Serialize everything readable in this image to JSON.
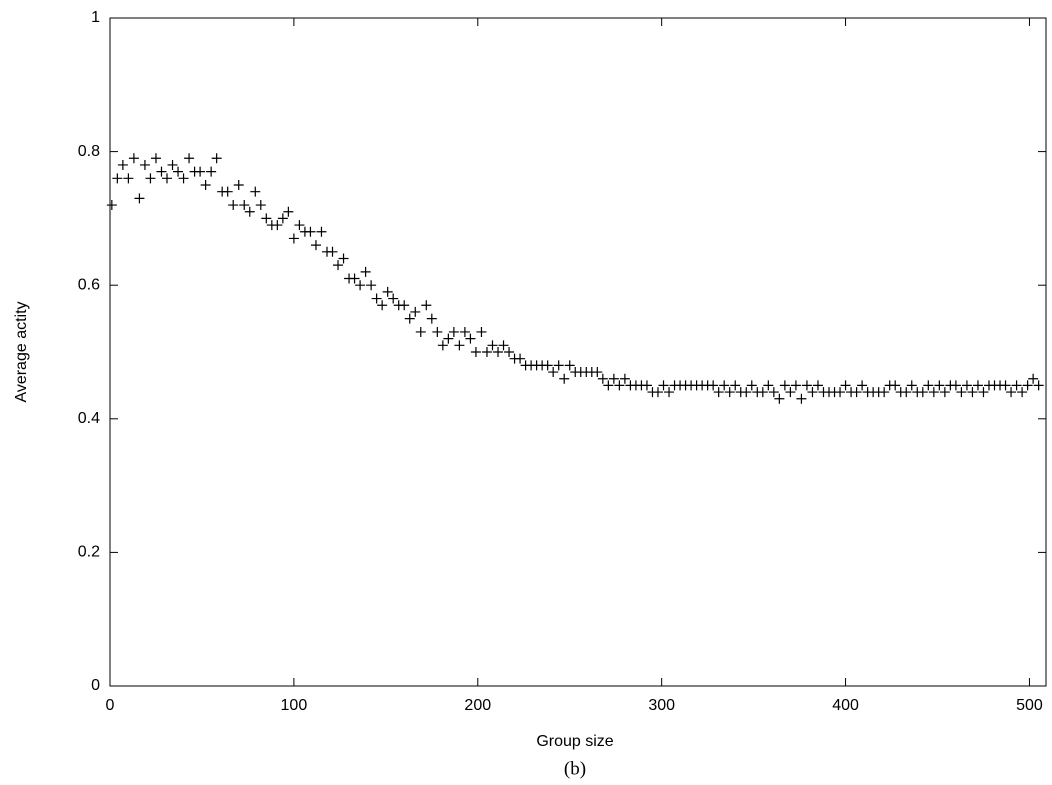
{
  "chart_data": {
    "type": "scatter",
    "xlabel": "Group size",
    "ylabel": "Average actity",
    "caption": "(b)",
    "color": "#000000",
    "xlim": [
      0,
      509
    ],
    "ylim": [
      0,
      1
    ],
    "xticks": [
      0,
      100,
      200,
      300,
      400,
      500
    ],
    "yticks": [
      0,
      0.2,
      0.4,
      0.6,
      0.8,
      1
    ],
    "x": [
      1,
      4,
      7,
      10,
      13,
      16,
      19,
      22,
      25,
      28,
      31,
      34,
      37,
      40,
      43,
      46,
      49,
      52,
      55,
      58,
      61,
      64,
      67,
      70,
      73,
      76,
      79,
      82,
      85,
      88,
      91,
      94,
      97,
      100,
      103,
      106,
      109,
      112,
      115,
      118,
      121,
      124,
      127,
      130,
      133,
      136,
      139,
      142,
      145,
      148,
      151,
      154,
      157,
      160,
      163,
      166,
      169,
      172,
      175,
      178,
      181,
      184,
      187,
      190,
      193,
      196,
      199,
      202,
      205,
      208,
      211,
      214,
      217,
      220,
      223,
      226,
      229,
      232,
      235,
      238,
      241,
      244,
      247,
      250,
      253,
      256,
      259,
      262,
      265,
      268,
      271,
      274,
      277,
      280,
      283,
      286,
      289,
      292,
      295,
      298,
      301,
      304,
      307,
      310,
      313,
      316,
      319,
      322,
      325,
      328,
      331,
      334,
      337,
      340,
      343,
      346,
      349,
      352,
      355,
      358,
      361,
      364,
      367,
      370,
      373,
      376,
      379,
      382,
      385,
      388,
      391,
      394,
      397,
      400,
      403,
      406,
      409,
      412,
      415,
      418,
      421,
      424,
      427,
      430,
      433,
      436,
      439,
      442,
      445,
      448,
      451,
      454,
      457,
      460,
      463,
      466,
      469,
      472,
      475,
      478,
      481,
      484,
      487,
      490,
      493,
      496,
      499,
      502,
      505
    ],
    "values": [
      0.72,
      0.76,
      0.78,
      0.76,
      0.79,
      0.73,
      0.78,
      0.76,
      0.79,
      0.77,
      0.76,
      0.78,
      0.77,
      0.76,
      0.79,
      0.77,
      0.77,
      0.75,
      0.77,
      0.79,
      0.74,
      0.74,
      0.72,
      0.75,
      0.72,
      0.71,
      0.74,
      0.72,
      0.7,
      0.69,
      0.69,
      0.7,
      0.71,
      0.67,
      0.69,
      0.68,
      0.68,
      0.66,
      0.68,
      0.65,
      0.65,
      0.63,
      0.64,
      0.61,
      0.61,
      0.6,
      0.62,
      0.6,
      0.58,
      0.57,
      0.59,
      0.58,
      0.57,
      0.57,
      0.55,
      0.56,
      0.53,
      0.57,
      0.55,
      0.53,
      0.51,
      0.52,
      0.53,
      0.51,
      0.53,
      0.52,
      0.5,
      0.53,
      0.5,
      0.51,
      0.5,
      0.51,
      0.5,
      0.49,
      0.49,
      0.48,
      0.48,
      0.48,
      0.48,
      0.48,
      0.47,
      0.48,
      0.46,
      0.48,
      0.47,
      0.47,
      0.47,
      0.47,
      0.47,
      0.46,
      0.45,
      0.46,
      0.45,
      0.46,
      0.45,
      0.45,
      0.45,
      0.45,
      0.44,
      0.44,
      0.45,
      0.44,
      0.45,
      0.45,
      0.45,
      0.45,
      0.45,
      0.45,
      0.45,
      0.45,
      0.44,
      0.45,
      0.44,
      0.45,
      0.44,
      0.44,
      0.45,
      0.44,
      0.44,
      0.45,
      0.44,
      0.43,
      0.45,
      0.44,
      0.45,
      0.43,
      0.45,
      0.44,
      0.45,
      0.44,
      0.44,
      0.44,
      0.44,
      0.45,
      0.44,
      0.44,
      0.45,
      0.44,
      0.44,
      0.44,
      0.44,
      0.45,
      0.45,
      0.44,
      0.44,
      0.45,
      0.44,
      0.44,
      0.45,
      0.44,
      0.45,
      0.44,
      0.45,
      0.45,
      0.44,
      0.45,
      0.44,
      0.45,
      0.44,
      0.45,
      0.45,
      0.45,
      0.45,
      0.44,
      0.45,
      0.44,
      0.45,
      0.46,
      0.45
    ]
  }
}
